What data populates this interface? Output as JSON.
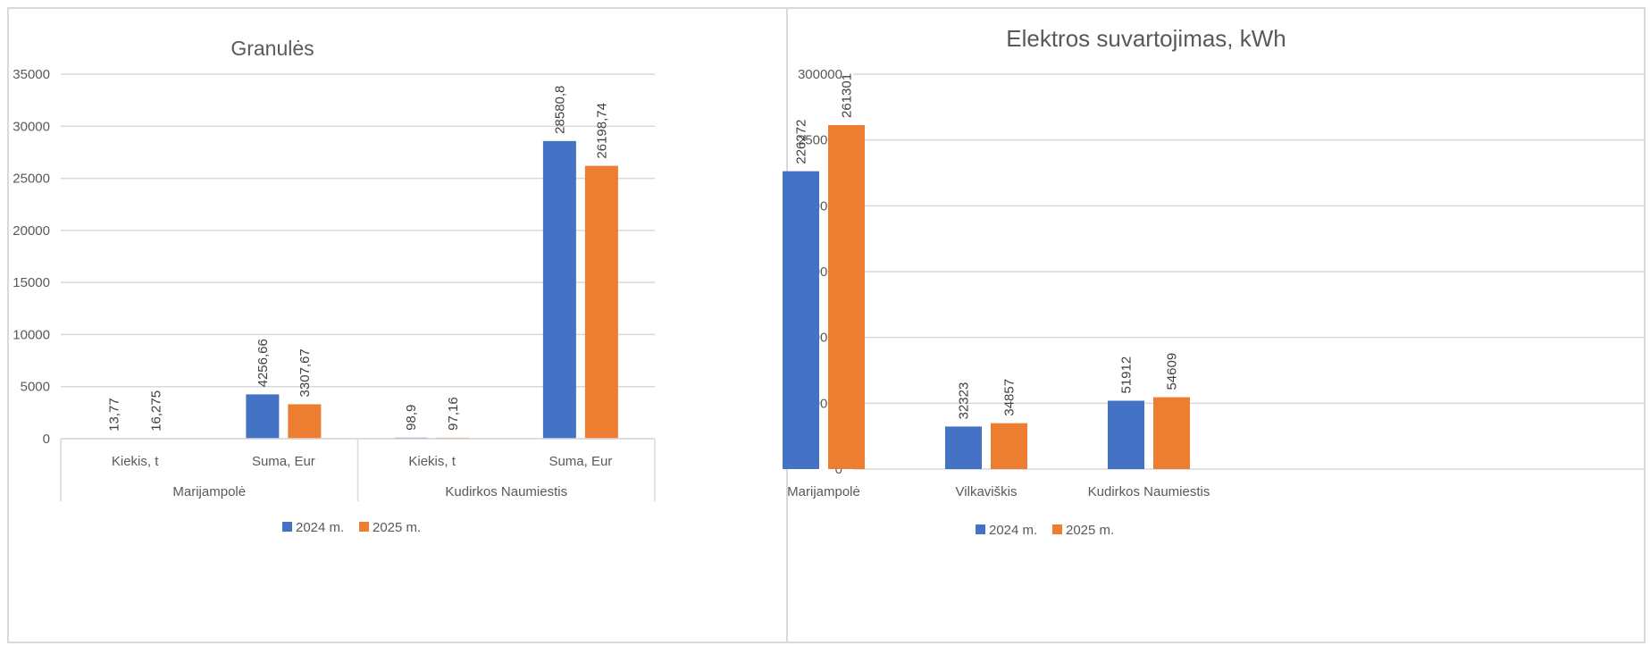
{
  "colors": {
    "series_2024": "#4472C4",
    "series_2025": "#ED7D31",
    "grid": "#d9d9d9",
    "text": "#595959"
  },
  "chart_data": [
    {
      "type": "bar",
      "title": "Granulės",
      "ylim": [
        0,
        35000
      ],
      "yticks": [
        "0",
        "5000",
        "10000",
        "15000",
        "20000",
        "25000",
        "30000",
        "35000"
      ],
      "categories": [
        "Kiekis, t",
        "Suma, Eur",
        "Kiekis, t",
        "Suma, Eur"
      ],
      "groups": [
        "Marijampolė",
        "Kudirkos Naumiestis"
      ],
      "series": [
        {
          "name": "2024 m.",
          "values": [
            13.77,
            4256.66,
            98.9,
            28580.8
          ],
          "labels": [
            "13,77",
            "4256,66",
            "98,9",
            "28580,8"
          ]
        },
        {
          "name": "2025 m.",
          "values": [
            16.275,
            3307.67,
            97.16,
            26198.74
          ],
          "labels": [
            "16,275",
            "3307,67",
            "97,16",
            "26198,74"
          ]
        }
      ],
      "grid": true,
      "legend": "bottom"
    },
    {
      "type": "bar",
      "title": "Elektros suvartojimas, kWh",
      "ylim": [
        0,
        300000
      ],
      "yticks": [
        "0",
        "50000",
        "100000",
        "150000",
        "200000",
        "250000",
        "300000"
      ],
      "categories": [
        "Marijampolė",
        "Vilkaviškis",
        "Kudirkos Naumiestis"
      ],
      "series": [
        {
          "name": "2024 m.",
          "values": [
            226272,
            32323,
            51912
          ],
          "labels": [
            "226272",
            "32323",
            "51912"
          ]
        },
        {
          "name": "2025 m.",
          "values": [
            261301,
            34857,
            54609
          ],
          "labels": [
            "261301",
            "34857",
            "54609"
          ]
        }
      ],
      "grid": true,
      "legend": "bottom"
    }
  ]
}
